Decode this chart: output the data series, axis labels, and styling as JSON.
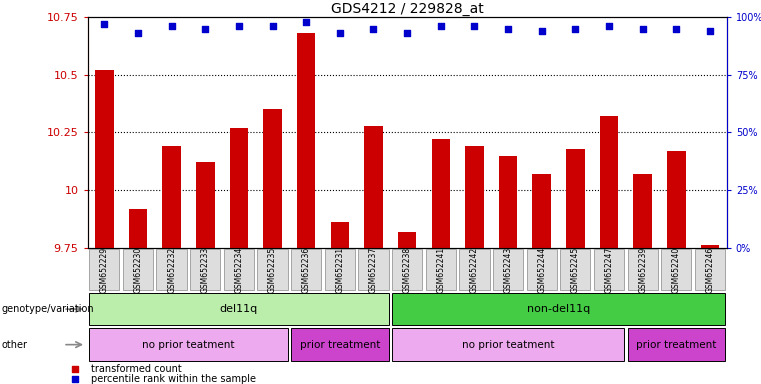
{
  "title": "GDS4212 / 229828_at",
  "samples": [
    "GSM652229",
    "GSM652230",
    "GSM652232",
    "GSM652233",
    "GSM652234",
    "GSM652235",
    "GSM652236",
    "GSM652231",
    "GSM652237",
    "GSM652238",
    "GSM652241",
    "GSM652242",
    "GSM652243",
    "GSM652244",
    "GSM652245",
    "GSM652247",
    "GSM652239",
    "GSM652240",
    "GSM652246"
  ],
  "bar_values": [
    10.52,
    9.92,
    10.19,
    10.12,
    10.27,
    10.35,
    10.68,
    9.86,
    10.28,
    9.82,
    10.22,
    10.19,
    10.15,
    10.07,
    10.18,
    10.32,
    10.07,
    10.17,
    9.76
  ],
  "percentile_values": [
    97,
    93,
    96,
    95,
    96,
    96,
    98,
    93,
    95,
    93,
    96,
    96,
    95,
    94,
    95,
    96,
    95,
    95,
    94
  ],
  "ymin": 9.75,
  "ymax": 10.75,
  "yticks": [
    9.75,
    10.0,
    10.25,
    10.5,
    10.75
  ],
  "ytick_labels": [
    "9.75",
    "10",
    "10.25",
    "10.5",
    "10.75"
  ],
  "right_yticks": [
    0,
    25,
    50,
    75,
    100
  ],
  "right_ytick_labels": [
    "0%",
    "25%",
    "50%",
    "75%",
    "100%"
  ],
  "bar_color": "#cc0000",
  "percentile_color": "#0000cc",
  "left_tick_color": "#cc0000",
  "right_tick_color": "#0000cc",
  "genotype_groups": [
    {
      "label": "del11q",
      "start": 0,
      "end": 9,
      "color": "#bbeeaa"
    },
    {
      "label": "non-del11q",
      "start": 9,
      "end": 19,
      "color": "#44cc44"
    }
  ],
  "other_groups": [
    {
      "label": "no prior teatment",
      "start": 0,
      "end": 6,
      "color": "#eeaaee"
    },
    {
      "label": "prior treatment",
      "start": 6,
      "end": 9,
      "color": "#cc44cc"
    },
    {
      "label": "no prior teatment",
      "start": 9,
      "end": 16,
      "color": "#eeaaee"
    },
    {
      "label": "prior treatment",
      "start": 16,
      "end": 19,
      "color": "#cc44cc"
    }
  ],
  "legend_items": [
    {
      "label": "transformed count",
      "color": "#cc0000"
    },
    {
      "label": "percentile rank within the sample",
      "color": "#0000cc"
    }
  ],
  "xtick_bg": "#dddddd",
  "grid_color": "#000000"
}
